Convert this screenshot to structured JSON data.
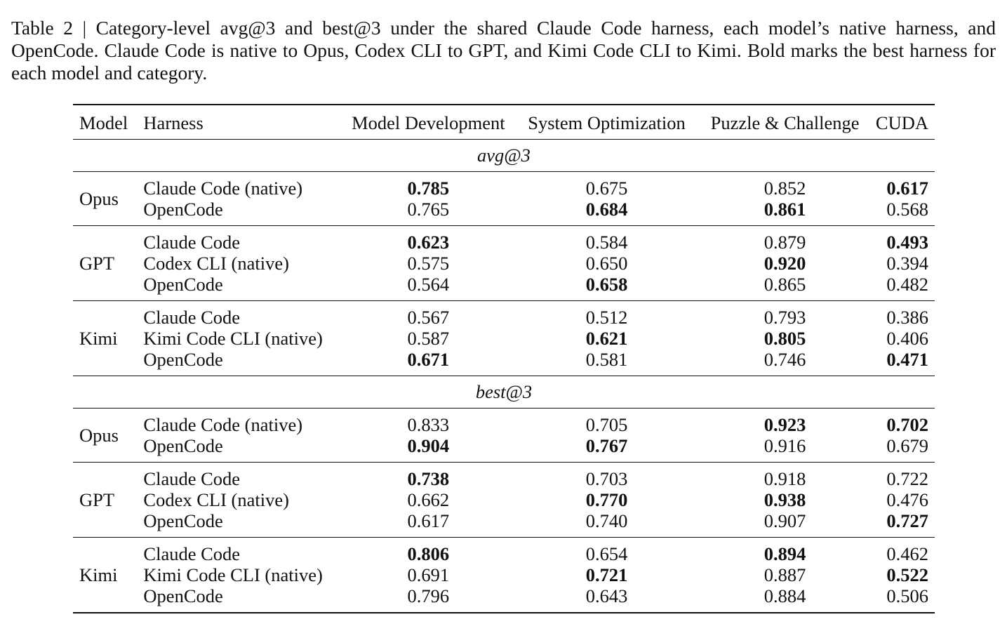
{
  "caption": "Table 2 | Category-level avg@3 and best@3 under the shared Claude Code harness, each model’s native harness, and OpenCode. Claude Code is native to Opus, Codex CLI to GPT, and Kimi Code CLI to Kimi. Bold marks the best harness for each model and category.",
  "columns": [
    "Model",
    "Harness",
    "Model Development",
    "System Optimization",
    "Puzzle & Challenge",
    "CUDA"
  ],
  "sections": [
    {
      "label": "avg@3",
      "groups": [
        {
          "model": "Opus",
          "rows": [
            {
              "harness": "Claude Code (native)",
              "values": [
                "0.785",
                "0.675",
                "0.852",
                "0.617"
              ],
              "bold": [
                true,
                false,
                false,
                true
              ]
            },
            {
              "harness": "OpenCode",
              "values": [
                "0.765",
                "0.684",
                "0.861",
                "0.568"
              ],
              "bold": [
                false,
                true,
                true,
                false
              ]
            }
          ]
        },
        {
          "model": "GPT",
          "rows": [
            {
              "harness": "Claude Code",
              "values": [
                "0.623",
                "0.584",
                "0.879",
                "0.493"
              ],
              "bold": [
                true,
                false,
                false,
                true
              ]
            },
            {
              "harness": "Codex CLI (native)",
              "values": [
                "0.575",
                "0.650",
                "0.920",
                "0.394"
              ],
              "bold": [
                false,
                false,
                true,
                false
              ]
            },
            {
              "harness": "OpenCode",
              "values": [
                "0.564",
                "0.658",
                "0.865",
                "0.482"
              ],
              "bold": [
                false,
                true,
                false,
                false
              ]
            }
          ]
        },
        {
          "model": "Kimi",
          "rows": [
            {
              "harness": "Claude Code",
              "values": [
                "0.567",
                "0.512",
                "0.793",
                "0.386"
              ],
              "bold": [
                false,
                false,
                false,
                false
              ]
            },
            {
              "harness": "Kimi Code CLI (native)",
              "values": [
                "0.587",
                "0.621",
                "0.805",
                "0.406"
              ],
              "bold": [
                false,
                true,
                true,
                false
              ]
            },
            {
              "harness": "OpenCode",
              "values": [
                "0.671",
                "0.581",
                "0.746",
                "0.471"
              ],
              "bold": [
                true,
                false,
                false,
                true
              ]
            }
          ]
        }
      ]
    },
    {
      "label": "best@3",
      "groups": [
        {
          "model": "Opus",
          "rows": [
            {
              "harness": "Claude Code (native)",
              "values": [
                "0.833",
                "0.705",
                "0.923",
                "0.702"
              ],
              "bold": [
                false,
                false,
                true,
                true
              ]
            },
            {
              "harness": "OpenCode",
              "values": [
                "0.904",
                "0.767",
                "0.916",
                "0.679"
              ],
              "bold": [
                true,
                true,
                false,
                false
              ]
            }
          ]
        },
        {
          "model": "GPT",
          "rows": [
            {
              "harness": "Claude Code",
              "values": [
                "0.738",
                "0.703",
                "0.918",
                "0.722"
              ],
              "bold": [
                true,
                false,
                false,
                false
              ]
            },
            {
              "harness": "Codex CLI (native)",
              "values": [
                "0.662",
                "0.770",
                "0.938",
                "0.476"
              ],
              "bold": [
                false,
                true,
                true,
                false
              ]
            },
            {
              "harness": "OpenCode",
              "values": [
                "0.617",
                "0.740",
                "0.907",
                "0.727"
              ],
              "bold": [
                false,
                false,
                false,
                true
              ]
            }
          ]
        },
        {
          "model": "Kimi",
          "rows": [
            {
              "harness": "Claude Code",
              "values": [
                "0.806",
                "0.654",
                "0.894",
                "0.462"
              ],
              "bold": [
                true,
                false,
                true,
                false
              ]
            },
            {
              "harness": "Kimi Code CLI (native)",
              "values": [
                "0.691",
                "0.721",
                "0.887",
                "0.522"
              ],
              "bold": [
                false,
                true,
                false,
                true
              ]
            },
            {
              "harness": "OpenCode",
              "values": [
                "0.796",
                "0.643",
                "0.884",
                "0.506"
              ],
              "bold": [
                false,
                false,
                false,
                false
              ]
            }
          ]
        }
      ]
    }
  ]
}
